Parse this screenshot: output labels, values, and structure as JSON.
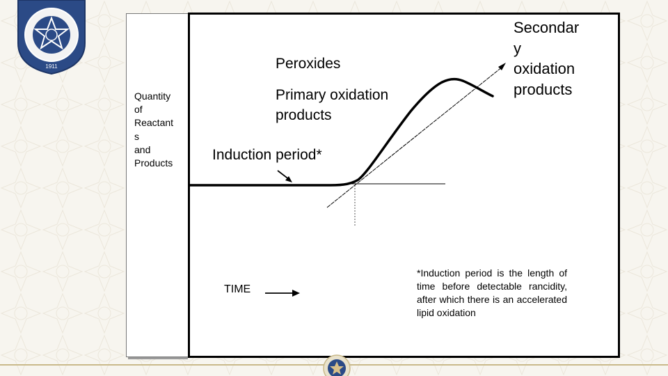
{
  "logo": {
    "year": "1911",
    "ring_text": "YILDIZ TEKNİK ÜNİVERSİTESİ"
  },
  "diagram": {
    "y_axis_label": "Quantity\nof\nReactant\ns\nand\nProducts",
    "x_axis_label": "TIME",
    "label_peroxides": "Peroxides",
    "label_primary": "Primary oxidation\nproducts",
    "label_secondary": "Secondar\ny\noxidation\nproducts",
    "label_induction": "Induction period*",
    "footnote": "*Induction period is the length of time before detectable rancidity, after which there is an accelerated lipid oxidation"
  },
  "colors": {
    "accent_blue": "#2b4a86",
    "gold": "#c9b98a",
    "line": "#000000"
  }
}
